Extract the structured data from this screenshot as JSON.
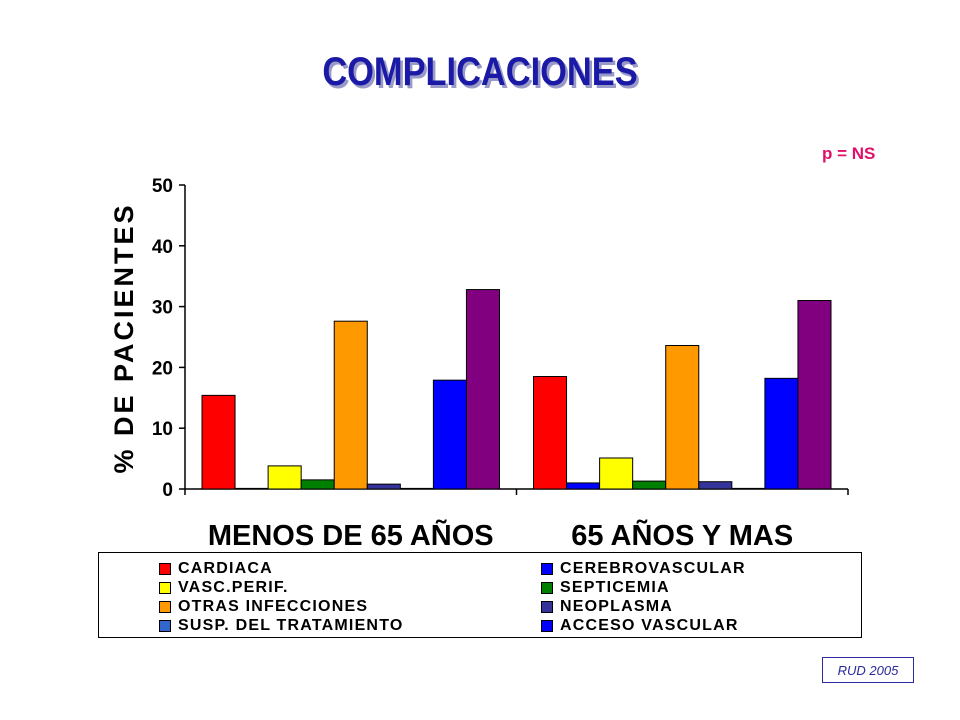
{
  "title": "COMPLICACIONES",
  "p_value": "p = NS",
  "source_note": "RUD 2005",
  "chart_data": {
    "type": "bar",
    "title": "COMPLICACIONES",
    "xlabel": "",
    "ylabel": "% DE PACIENTES",
    "ylim": [
      0,
      50
    ],
    "yticks": [
      "0",
      "10",
      "20",
      "30",
      "40",
      "50"
    ],
    "categories": [
      "MENOS DE 65 AÑOS",
      "65 AÑOS Y MAS"
    ],
    "grid": false,
    "legend_position": "bottom",
    "series": [
      {
        "name": "CARDIACA",
        "color": "#ff0000",
        "values": [
          15.4,
          18.5
        ]
      },
      {
        "name": "CEREBROVASCULAR",
        "color": "#0000ff",
        "values": [
          0.1,
          1.0
        ]
      },
      {
        "name": "VASC.PERIF.",
        "color": "#ffff00",
        "values": [
          3.8,
          5.1
        ]
      },
      {
        "name": "SEPTICEMIA",
        "color": "#008000",
        "values": [
          1.5,
          1.3
        ]
      },
      {
        "name": "OTRAS INFECCIONES",
        "color": "#ff9900",
        "values": [
          27.6,
          23.6
        ]
      },
      {
        "name": "NEOPLASMA",
        "color": "#333399",
        "values": [
          0.8,
          1.2
        ]
      },
      {
        "name": "SUSP. DEL TRATAMIENTO",
        "color": "#3366cc",
        "values": [
          0.1,
          0.1
        ]
      },
      {
        "name": "ACCESO VASCULAR",
        "color": "#0000ff",
        "values": [
          17.9,
          18.2
        ]
      },
      {
        "name": "",
        "color": "#800080",
        "values": [
          32.8,
          31.0
        ]
      }
    ]
  }
}
